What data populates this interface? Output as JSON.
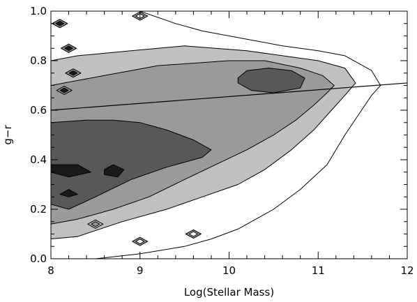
{
  "chart_data": {
    "type": "contour",
    "title": "",
    "xlabel": "Log(Stellar Mass)",
    "ylabel": "g−r",
    "xlim": [
      8,
      12
    ],
    "ylim": [
      0.0,
      1.0
    ],
    "x_ticks": [
      8,
      9,
      10,
      11,
      12
    ],
    "x_tick_labels": [
      "8",
      "9",
      "10",
      "11",
      "12"
    ],
    "y_ticks": [
      0.0,
      0.2,
      0.4,
      0.6,
      0.8,
      1.0
    ],
    "y_tick_labels": [
      "0.0",
      "0.2",
      "0.4",
      "0.6",
      "0.8",
      "1.0"
    ],
    "grid": false,
    "legend": "none",
    "fill_colors": [
      "#ffffff",
      "#c0c0c0",
      "#9a9a9a",
      "#585858",
      "#1a1a1a"
    ],
    "contour_levels": [
      {
        "level": 1,
        "color": "#ffffff",
        "polygon": [
          [
            8.0,
            0.0
          ],
          [
            8.5,
            0.0
          ],
          [
            9.0,
            0.02
          ],
          [
            9.5,
            0.05
          ],
          [
            9.8,
            0.08
          ],
          [
            10.1,
            0.12
          ],
          [
            10.5,
            0.2
          ],
          [
            10.8,
            0.28
          ],
          [
            11.1,
            0.38
          ],
          [
            11.3,
            0.5
          ],
          [
            11.45,
            0.58
          ],
          [
            11.6,
            0.66
          ],
          [
            11.7,
            0.7
          ],
          [
            11.6,
            0.76
          ],
          [
            11.3,
            0.82
          ],
          [
            11.0,
            0.84
          ],
          [
            10.6,
            0.86
          ],
          [
            10.3,
            0.88
          ],
          [
            10.0,
            0.9
          ],
          [
            9.7,
            0.92
          ],
          [
            9.4,
            0.95
          ],
          [
            9.0,
            1.0
          ],
          [
            8.0,
            1.0
          ]
        ]
      },
      {
        "level": 2,
        "color": "#c0c0c0",
        "polygon": [
          [
            8.0,
            0.08
          ],
          [
            8.3,
            0.09
          ],
          [
            8.8,
            0.15
          ],
          [
            9.3,
            0.2
          ],
          [
            9.7,
            0.25
          ],
          [
            10.1,
            0.3
          ],
          [
            10.4,
            0.36
          ],
          [
            10.7,
            0.44
          ],
          [
            10.95,
            0.52
          ],
          [
            11.15,
            0.6
          ],
          [
            11.3,
            0.66
          ],
          [
            11.42,
            0.71
          ],
          [
            11.3,
            0.77
          ],
          [
            11.0,
            0.8
          ],
          [
            10.6,
            0.82
          ],
          [
            10.2,
            0.84
          ],
          [
            9.85,
            0.85
          ],
          [
            9.5,
            0.86
          ],
          [
            9.2,
            0.85
          ],
          [
            8.9,
            0.84
          ],
          [
            8.6,
            0.83
          ],
          [
            8.3,
            0.82
          ],
          [
            8.0,
            0.8
          ]
        ]
      },
      {
        "level": 3,
        "color": "#9a9a9a",
        "polygon": [
          [
            8.0,
            0.14
          ],
          [
            8.3,
            0.16
          ],
          [
            8.7,
            0.2
          ],
          [
            9.1,
            0.25
          ],
          [
            9.5,
            0.32
          ],
          [
            9.85,
            0.38
          ],
          [
            10.2,
            0.44
          ],
          [
            10.5,
            0.5
          ],
          [
            10.75,
            0.56
          ],
          [
            10.95,
            0.62
          ],
          [
            11.1,
            0.67
          ],
          [
            11.18,
            0.7
          ],
          [
            11.05,
            0.74
          ],
          [
            10.8,
            0.77
          ],
          [
            10.4,
            0.8
          ],
          [
            10.0,
            0.8
          ],
          [
            9.6,
            0.79
          ],
          [
            9.2,
            0.78
          ],
          [
            8.9,
            0.76
          ],
          [
            8.6,
            0.74
          ],
          [
            8.3,
            0.72
          ],
          [
            8.0,
            0.7
          ]
        ]
      },
      {
        "level": 4,
        "color": "#585858",
        "polygon": [
          [
            8.0,
            0.22
          ],
          [
            8.2,
            0.2
          ],
          [
            8.5,
            0.25
          ],
          [
            8.9,
            0.32
          ],
          [
            9.3,
            0.37
          ],
          [
            9.7,
            0.41
          ],
          [
            9.8,
            0.44
          ],
          [
            9.6,
            0.48
          ],
          [
            9.3,
            0.52
          ],
          [
            9.0,
            0.55
          ],
          [
            8.7,
            0.56
          ],
          [
            8.4,
            0.56
          ],
          [
            8.0,
            0.55
          ]
        ]
      },
      {
        "level": 4,
        "color": "#585858",
        "polygon": [
          [
            10.1,
            0.71
          ],
          [
            10.25,
            0.68
          ],
          [
            10.5,
            0.67
          ],
          [
            10.8,
            0.69
          ],
          [
            10.85,
            0.73
          ],
          [
            10.7,
            0.76
          ],
          [
            10.45,
            0.77
          ],
          [
            10.2,
            0.76
          ],
          [
            10.1,
            0.73
          ]
        ]
      },
      {
        "level": 5,
        "color": "#1a1a1a",
        "polygon": [
          [
            8.0,
            0.35
          ],
          [
            8.2,
            0.33
          ],
          [
            8.45,
            0.35
          ],
          [
            8.3,
            0.38
          ],
          [
            8.0,
            0.38
          ]
        ]
      },
      {
        "level": 5,
        "color": "#1a1a1a",
        "polygon": [
          [
            8.6,
            0.34
          ],
          [
            8.75,
            0.33
          ],
          [
            8.82,
            0.36
          ],
          [
            8.7,
            0.38
          ],
          [
            8.6,
            0.36
          ]
        ]
      },
      {
        "level": 5,
        "color": "#1a1a1a",
        "polygon": [
          [
            8.1,
            0.26
          ],
          [
            8.2,
            0.28
          ],
          [
            8.3,
            0.26
          ],
          [
            8.2,
            0.25
          ]
        ]
      }
    ],
    "islands": [
      {
        "x": 8.1,
        "y": 0.95,
        "color": "#9a9a9a",
        "core": "#1a1a1a"
      },
      {
        "x": 8.2,
        "y": 0.85,
        "color": "#9a9a9a",
        "core": "#1a1a1a"
      },
      {
        "x": 8.25,
        "y": 0.75,
        "color": "#9a9a9a",
        "core": "#1a1a1a"
      },
      {
        "x": 8.15,
        "y": 0.68,
        "color": "#9a9a9a",
        "core": "#1a1a1a"
      },
      {
        "x": 9.0,
        "y": 0.98,
        "color": "#9a9a9a",
        "core": "#ffffff"
      },
      {
        "x": 9.0,
        "y": 0.07,
        "color": "#9a9a9a",
        "core": "#ffffff"
      },
      {
        "x": 9.6,
        "y": 0.1,
        "color": "#9a9a9a",
        "core": "#ffffff"
      },
      {
        "x": 8.5,
        "y": 0.14,
        "color": "#c0c0c0",
        "core": "#9a9a9a"
      }
    ],
    "fit_line": {
      "x": [
        8.0,
        12.0
      ],
      "y": [
        0.6,
        0.71
      ]
    }
  }
}
